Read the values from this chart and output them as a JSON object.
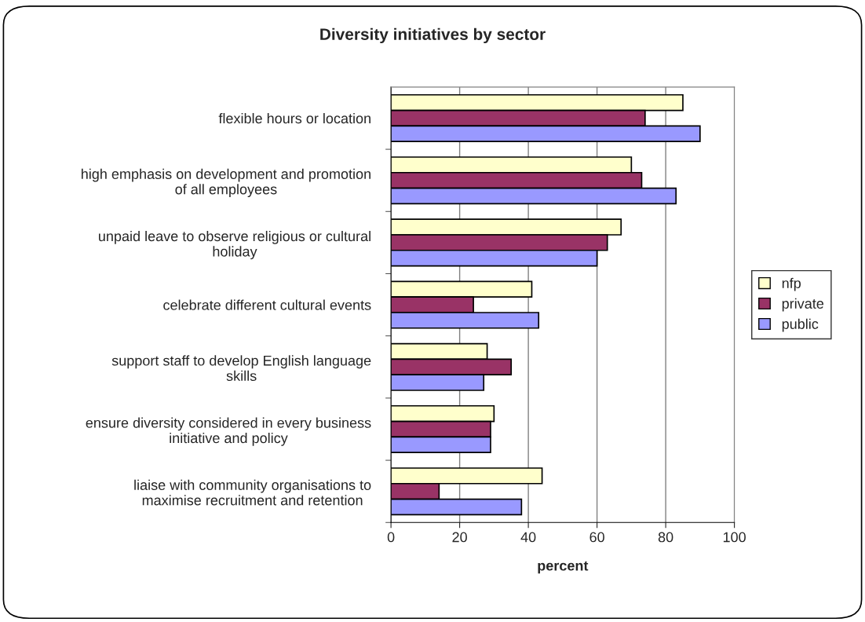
{
  "chart_data": {
    "type": "bar",
    "orientation": "horizontal",
    "title": "Diversity initiatives by sector",
    "xlabel": "percent",
    "categories": [
      "flexible hours or location",
      "high emphasis on development and promotion of all employees",
      "unpaid leave to observe religious or cultural holiday",
      "celebrate different cultural events",
      "support staff to develop English language skills",
      "ensure diversity considered in every business initiative and policy",
      "liaise with community organisations to maximise recruitment and retention"
    ],
    "series": [
      {
        "name": "nfp",
        "color": "#ffffcc",
        "values": [
          85,
          70,
          67,
          41,
          28,
          30,
          44
        ]
      },
      {
        "name": "private",
        "color": "#993366",
        "values": [
          74,
          73,
          63,
          24,
          35,
          29,
          14
        ]
      },
      {
        "name": "public",
        "color": "#9999ff",
        "values": [
          90,
          83,
          60,
          43,
          27,
          29,
          38
        ]
      }
    ],
    "xlim": [
      0,
      100
    ],
    "xticks": [
      0,
      20,
      40,
      60,
      80,
      100
    ],
    "grid": "x",
    "legend": "right"
  }
}
